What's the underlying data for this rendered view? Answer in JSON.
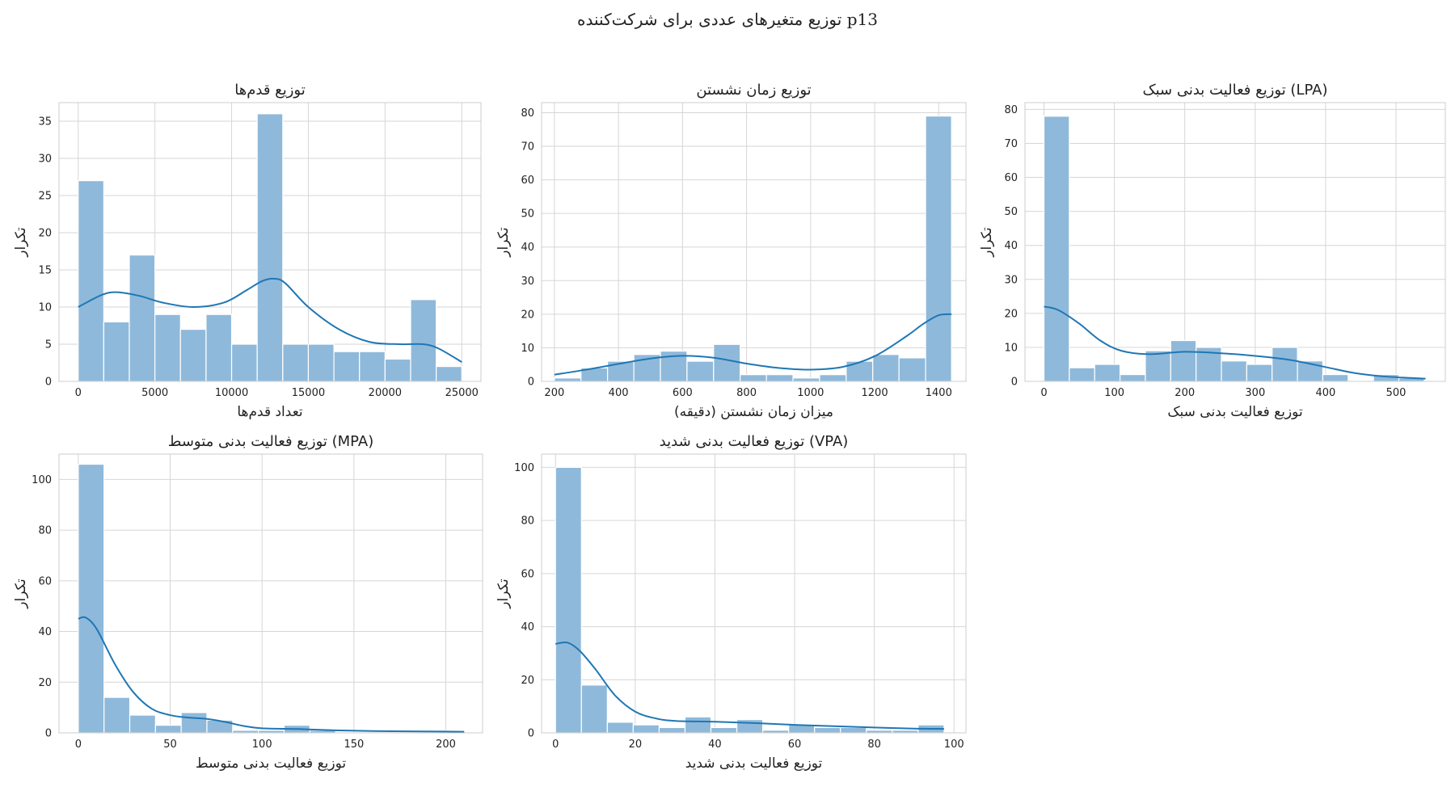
{
  "figure": {
    "title": "توزیع متغیرهای عددی برای شرکت‌کننده p13"
  },
  "colors": {
    "bar_fill": "#8fb9da",
    "bar_stroke": "#ffffff",
    "kde_line": "#1f77b4",
    "grid": "#d6d6d6",
    "spine": "#cccccc",
    "text": "#222222"
  },
  "chart_data": [
    {
      "type": "bar",
      "subtype": "histogram_with_kde",
      "title": "توزیع قدم‌ها",
      "xlabel": "تعداد قدم‌ها",
      "ylabel": "تکرار",
      "xlim": [
        -1250,
        26250
      ],
      "ylim": [
        0,
        37.5
      ],
      "xticks": [
        0,
        5000,
        10000,
        15000,
        20000,
        25000
      ],
      "xtick_labels": [
        "0",
        "5000",
        "10000",
        "15000",
        "20000",
        "25000"
      ],
      "yticks": [
        0,
        5,
        10,
        15,
        20,
        25,
        30,
        35
      ],
      "bins": [
        {
          "x0": 0,
          "x1": 1667,
          "count": 27
        },
        {
          "x0": 1667,
          "x1": 3333,
          "count": 8
        },
        {
          "x0": 3333,
          "x1": 5000,
          "count": 17
        },
        {
          "x0": 5000,
          "x1": 6667,
          "count": 9
        },
        {
          "x0": 6667,
          "x1": 8333,
          "count": 7
        },
        {
          "x0": 8333,
          "x1": 10000,
          "count": 9
        },
        {
          "x0": 10000,
          "x1": 11667,
          "count": 5
        },
        {
          "x0": 11667,
          "x1": 13333,
          "count": 36
        },
        {
          "x0": 13333,
          "x1": 15000,
          "count": 5
        },
        {
          "x0": 15000,
          "x1": 16667,
          "count": 5
        },
        {
          "x0": 16667,
          "x1": 18333,
          "count": 4
        },
        {
          "x0": 18333,
          "x1": 20000,
          "count": 4
        },
        {
          "x0": 20000,
          "x1": 21667,
          "count": 3
        },
        {
          "x0": 21667,
          "x1": 23333,
          "count": 11
        },
        {
          "x0": 23333,
          "x1": 25000,
          "count": 2
        }
      ],
      "kde": {
        "x": [
          0,
          1500,
          2500,
          4000,
          5500,
          7500,
          9500,
          11000,
          12000,
          12800,
          13500,
          15000,
          17000,
          19000,
          21000,
          22500,
          23500,
          25000
        ],
        "y": [
          10,
          11.6,
          12,
          11.5,
          10.6,
          10,
          10.6,
          12.3,
          13.5,
          13.8,
          13.2,
          10,
          7,
          5.3,
          5,
          5,
          4.4,
          2.6
        ]
      }
    },
    {
      "type": "bar",
      "subtype": "histogram_with_kde",
      "title": "توزیع زمان نشستن",
      "xlabel": "میزان زمان نشستن (دقیقه)",
      "ylabel": "تکرار",
      "xlim": [
        160,
        1485
      ],
      "ylim": [
        0,
        83
      ],
      "xticks": [
        200,
        400,
        600,
        800,
        1000,
        1200,
        1400
      ],
      "xtick_labels": [
        "200",
        "400",
        "600",
        "800",
        "1000",
        "1200",
        "1400"
      ],
      "yticks": [
        0,
        10,
        20,
        30,
        40,
        50,
        60,
        70,
        80
      ],
      "bins": [
        {
          "x0": 200,
          "x1": 283,
          "count": 1
        },
        {
          "x0": 283,
          "x1": 366,
          "count": 4
        },
        {
          "x0": 366,
          "x1": 448,
          "count": 6
        },
        {
          "x0": 448,
          "x1": 531,
          "count": 8
        },
        {
          "x0": 531,
          "x1": 614,
          "count": 9
        },
        {
          "x0": 614,
          "x1": 697,
          "count": 6
        },
        {
          "x0": 697,
          "x1": 780,
          "count": 11
        },
        {
          "x0": 780,
          "x1": 862,
          "count": 2
        },
        {
          "x0": 862,
          "x1": 945,
          "count": 2
        },
        {
          "x0": 945,
          "x1": 1028,
          "count": 1
        },
        {
          "x0": 1028,
          "x1": 1111,
          "count": 2
        },
        {
          "x0": 1111,
          "x1": 1194,
          "count": 6
        },
        {
          "x0": 1194,
          "x1": 1276,
          "count": 8
        },
        {
          "x0": 1276,
          "x1": 1359,
          "count": 7
        },
        {
          "x0": 1359,
          "x1": 1440,
          "count": 79
        }
      ],
      "kde": {
        "x": [
          200,
          300,
          400,
          500,
          600,
          700,
          800,
          900,
          1000,
          1100,
          1200,
          1300,
          1350,
          1400,
          1440
        ],
        "y": [
          2,
          3.5,
          5.2,
          6.8,
          7.6,
          7,
          5.3,
          4,
          3.5,
          4.3,
          7.5,
          13.5,
          17,
          19.7,
          20
        ]
      }
    },
    {
      "type": "bar",
      "subtype": "histogram_with_kde",
      "title": "توزیع فعالیت بدنی سبک (LPA)",
      "xlabel": "توزیع فعالیت بدنی سبک",
      "ylabel": "تکرار",
      "xlim": [
        -27,
        570
      ],
      "ylim": [
        0,
        82
      ],
      "xticks": [
        0,
        100,
        200,
        300,
        400,
        500
      ],
      "xtick_labels": [
        "0",
        "100",
        "200",
        "300",
        "400",
        "500"
      ],
      "yticks": [
        0,
        10,
        20,
        30,
        40,
        50,
        60,
        70,
        80
      ],
      "bins": [
        {
          "x0": 0,
          "x1": 36,
          "count": 78
        },
        {
          "x0": 36,
          "x1": 72,
          "count": 4
        },
        {
          "x0": 72,
          "x1": 108,
          "count": 5
        },
        {
          "x0": 108,
          "x1": 144,
          "count": 2
        },
        {
          "x0": 144,
          "x1": 180,
          "count": 9
        },
        {
          "x0": 180,
          "x1": 216,
          "count": 12
        },
        {
          "x0": 216,
          "x1": 252,
          "count": 10
        },
        {
          "x0": 252,
          "x1": 288,
          "count": 6
        },
        {
          "x0": 288,
          "x1": 324,
          "count": 5
        },
        {
          "x0": 324,
          "x1": 360,
          "count": 10
        },
        {
          "x0": 360,
          "x1": 396,
          "count": 6
        },
        {
          "x0": 396,
          "x1": 432,
          "count": 2
        },
        {
          "x0": 432,
          "x1": 468,
          "count": 0
        },
        {
          "x0": 468,
          "x1": 504,
          "count": 2
        },
        {
          "x0": 504,
          "x1": 540,
          "count": 1
        }
      ],
      "kde": {
        "x": [
          0,
          20,
          50,
          80,
          110,
          150,
          200,
          250,
          300,
          350,
          400,
          440,
          480,
          520,
          542
        ],
        "y": [
          22,
          21,
          17,
          12,
          9,
          8,
          8.7,
          8.3,
          7.5,
          6.3,
          4.2,
          2.5,
          1.5,
          1,
          0.8
        ]
      }
    },
    {
      "type": "bar",
      "subtype": "histogram_with_kde",
      "title": "توزیع فعالیت بدنی متوسط (MPA)",
      "xlabel": "توزیع فعالیت بدنی متوسط",
      "ylabel": "تکرار",
      "xlim": [
        -10.5,
        220
      ],
      "ylim": [
        0,
        110
      ],
      "xticks": [
        0,
        50,
        100,
        150,
        200
      ],
      "xtick_labels": [
        "0",
        "50",
        "100",
        "150",
        "200"
      ],
      "yticks": [
        0,
        20,
        40,
        60,
        80,
        100
      ],
      "bins": [
        {
          "x0": 0,
          "x1": 14,
          "count": 106
        },
        {
          "x0": 14,
          "x1": 28,
          "count": 14
        },
        {
          "x0": 28,
          "x1": 42,
          "count": 7
        },
        {
          "x0": 42,
          "x1": 56,
          "count": 3
        },
        {
          "x0": 56,
          "x1": 70,
          "count": 8
        },
        {
          "x0": 70,
          "x1": 84,
          "count": 5
        },
        {
          "x0": 84,
          "x1": 98,
          "count": 1
        },
        {
          "x0": 98,
          "x1": 112,
          "count": 1
        },
        {
          "x0": 112,
          "x1": 126,
          "count": 3
        },
        {
          "x0": 126,
          "x1": 140,
          "count": 1
        },
        {
          "x0": 140,
          "x1": 154,
          "count": 0
        },
        {
          "x0": 154,
          "x1": 168,
          "count": 0
        },
        {
          "x0": 168,
          "x1": 182,
          "count": 0
        },
        {
          "x0": 182,
          "x1": 196,
          "count": 0
        },
        {
          "x0": 196,
          "x1": 210,
          "count": 1
        }
      ],
      "kde": {
        "x": [
          0,
          4,
          10,
          20,
          30,
          40,
          50,
          60,
          70,
          80,
          90,
          100,
          120,
          140,
          160,
          180,
          200,
          210
        ],
        "y": [
          45,
          45.5,
          41,
          27,
          16,
          9.5,
          7,
          6,
          5.5,
          4.3,
          2.7,
          1.8,
          1.5,
          1,
          0.7,
          0.6,
          0.5,
          0.4
        ]
      }
    },
    {
      "type": "bar",
      "subtype": "histogram_with_kde",
      "title": "توزیع فعالیت بدنی شدید (VPA)",
      "xlabel": "توزیع فعالیت بدنی شدید",
      "ylabel": "تکرار",
      "xlim": [
        -3.5,
        103
      ],
      "ylim": [
        0,
        105
      ],
      "xticks": [
        0,
        20,
        40,
        60,
        80,
        100
      ],
      "xtick_labels": [
        "0",
        "20",
        "40",
        "60",
        "80",
        "100"
      ],
      "yticks": [
        0,
        20,
        40,
        60,
        80,
        100
      ],
      "bins": [
        {
          "x0": 0,
          "x1": 6.5,
          "count": 100
        },
        {
          "x0": 6.5,
          "x1": 13,
          "count": 18
        },
        {
          "x0": 13,
          "x1": 19.5,
          "count": 4
        },
        {
          "x0": 19.5,
          "x1": 26,
          "count": 3
        },
        {
          "x0": 26,
          "x1": 32.5,
          "count": 2
        },
        {
          "x0": 32.5,
          "x1": 39,
          "count": 6
        },
        {
          "x0": 39,
          "x1": 45.5,
          "count": 2
        },
        {
          "x0": 45.5,
          "x1": 52,
          "count": 5
        },
        {
          "x0": 52,
          "x1": 58.5,
          "count": 1
        },
        {
          "x0": 58.5,
          "x1": 65,
          "count": 3
        },
        {
          "x0": 65,
          "x1": 71.5,
          "count": 2
        },
        {
          "x0": 71.5,
          "x1": 78,
          "count": 2
        },
        {
          "x0": 78,
          "x1": 84.5,
          "count": 1
        },
        {
          "x0": 84.5,
          "x1": 91,
          "count": 1
        },
        {
          "x0": 91,
          "x1": 97.5,
          "count": 3
        }
      ],
      "kde": {
        "x": [
          0,
          3,
          6,
          10,
          15,
          20,
          25,
          30,
          40,
          50,
          60,
          70,
          80,
          90,
          97.5
        ],
        "y": [
          33.5,
          34,
          31,
          24,
          14,
          8,
          5.5,
          4.5,
          4.2,
          3.7,
          3,
          2.5,
          2,
          1.6,
          1.5
        ]
      }
    }
  ]
}
